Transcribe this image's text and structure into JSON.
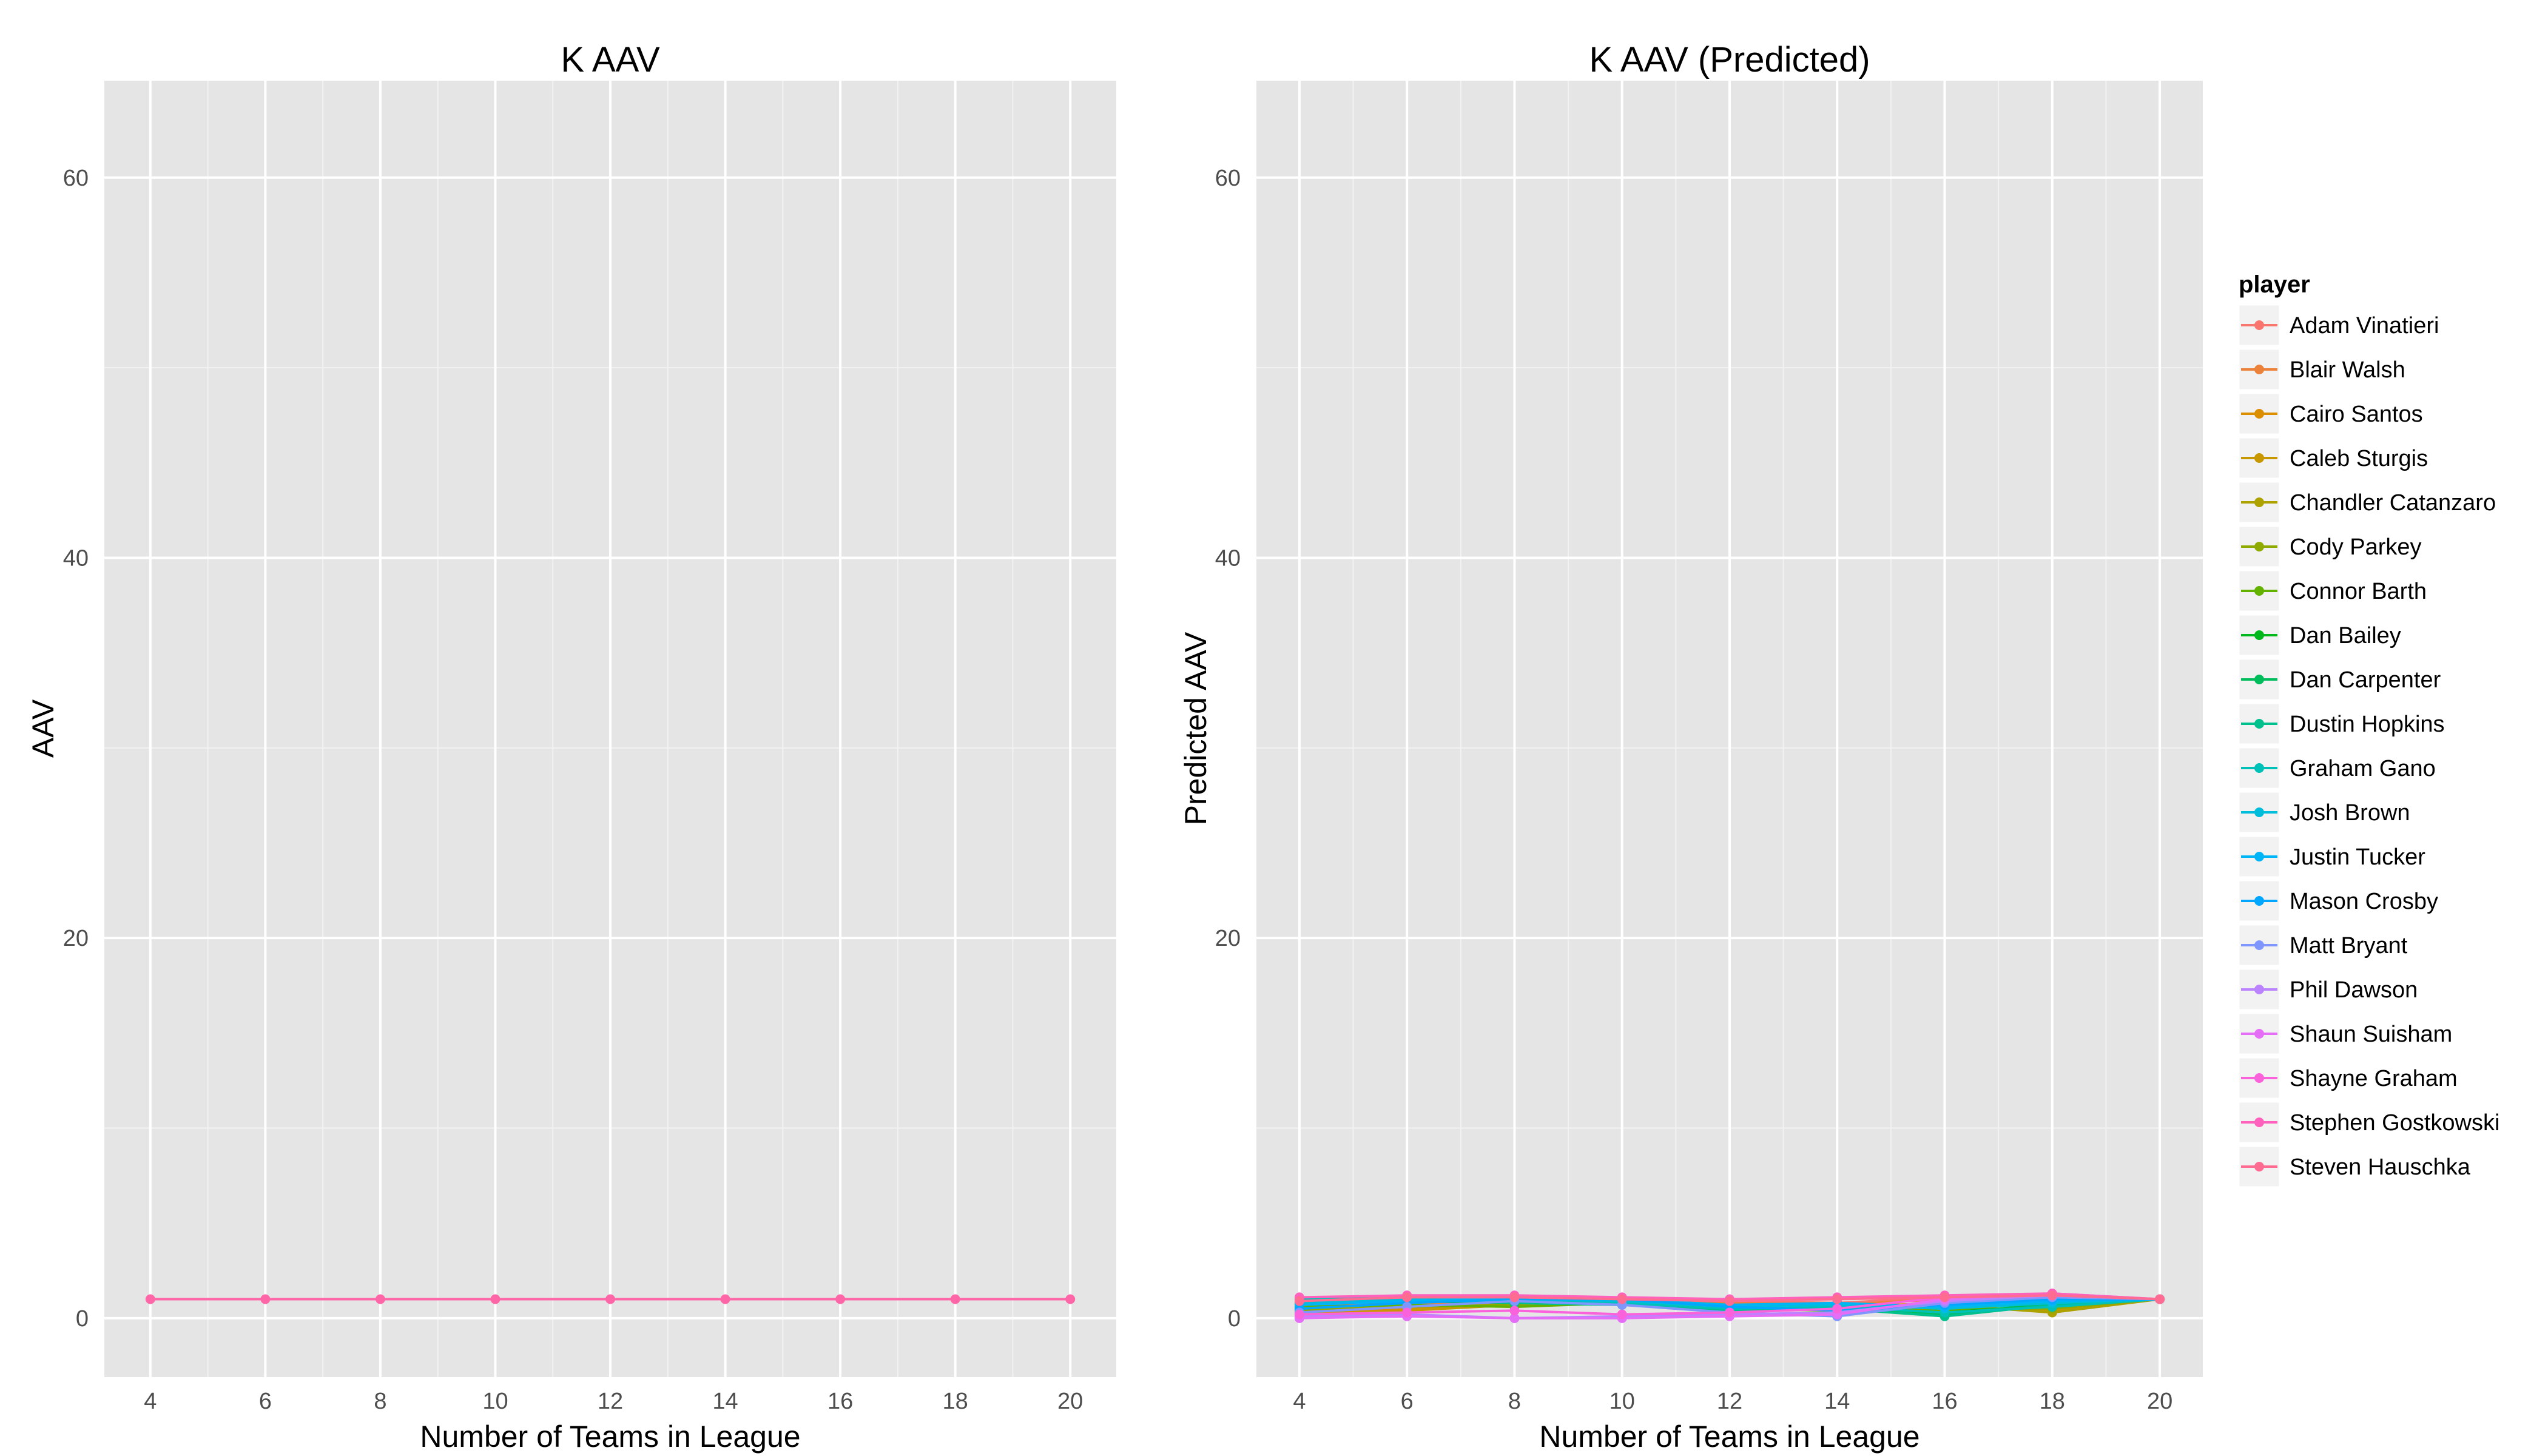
{
  "chart_data": [
    {
      "type": "line",
      "title": "K AAV",
      "xlabel": "Number of Teams in League",
      "ylabel": "AAV",
      "x": [
        4,
        6,
        8,
        10,
        12,
        14,
        16,
        18,
        20
      ],
      "xticks": [
        "4",
        "6",
        "8",
        "10",
        "12",
        "14",
        "16",
        "18",
        "20"
      ],
      "yticks": [
        "0",
        "20",
        "40",
        "60"
      ],
      "xlim": [
        3.2,
        20.8
      ],
      "ylim": [
        -3.1,
        65.1
      ],
      "grid": true,
      "series": [
        {
          "values": [
            1,
            1,
            1,
            1,
            1,
            1,
            1,
            1,
            1
          ],
          "color": "#FF66A8"
        }
      ]
    },
    {
      "type": "line",
      "title": "K AAV (Predicted)",
      "xlabel": "Number of Teams in League",
      "ylabel": "Predicted AAV",
      "x": [
        4,
        6,
        8,
        10,
        12,
        14,
        16,
        18,
        20
      ],
      "xticks": [
        "4",
        "6",
        "8",
        "10",
        "12",
        "14",
        "16",
        "18",
        "20"
      ],
      "yticks": [
        "0",
        "20",
        "40",
        "60"
      ],
      "xlim": [
        3.2,
        20.8
      ],
      "ylim": [
        -3.1,
        65.1
      ],
      "grid": true,
      "legend": {
        "title": "player",
        "position": "right"
      },
      "series": [
        {
          "name": "Adam Vinatieri",
          "color": "#F8766D",
          "values": [
            0.6,
            0.8,
            1.0,
            0.9,
            0.9,
            0.8,
            1.1,
            1.1,
            1.0
          ]
        },
        {
          "name": "Blair Walsh",
          "color": "#EC8239",
          "values": [
            0.4,
            0.7,
            0.9,
            0.8,
            0.8,
            0.7,
            1.0,
            1.2,
            1.0
          ]
        },
        {
          "name": "Cairo Santos",
          "color": "#DB8E00",
          "values": [
            0.3,
            0.5,
            0.8,
            0.9,
            0.7,
            0.6,
            0.8,
            1.0,
            1.0
          ]
        },
        {
          "name": "Caleb Sturgis",
          "color": "#C79800",
          "values": [
            0.2,
            0.4,
            0.7,
            0.8,
            0.6,
            0.5,
            0.6,
            0.4,
            1.0
          ]
        },
        {
          "name": "Chandler Catanzaro",
          "color": "#AEA200",
          "values": [
            0.5,
            0.6,
            0.8,
            0.9,
            0.7,
            0.6,
            0.7,
            0.3,
            1.0
          ]
        },
        {
          "name": "Cody Parkey",
          "color": "#8FAA00",
          "values": [
            0.4,
            0.6,
            0.7,
            0.8,
            0.6,
            0.5,
            0.5,
            0.5,
            1.0
          ]
        },
        {
          "name": "Connor Barth",
          "color": "#64B200",
          "values": [
            0.6,
            0.7,
            0.6,
            0.8,
            0.5,
            0.4,
            0.4,
            0.6,
            1.0
          ]
        },
        {
          "name": "Dan Bailey",
          "color": "#00B81B",
          "values": [
            0.7,
            0.9,
            0.8,
            0.9,
            0.6,
            0.5,
            0.3,
            0.7,
            1.0
          ]
        },
        {
          "name": "Dan Carpenter",
          "color": "#00BD5C",
          "values": [
            0.8,
            1.0,
            0.9,
            0.8,
            0.5,
            0.6,
            0.2,
            0.8,
            1.0
          ]
        },
        {
          "name": "Dustin Hopkins",
          "color": "#00C08E",
          "values": [
            0.9,
            1.0,
            0.8,
            0.7,
            0.4,
            0.5,
            0.1,
            0.7,
            1.0
          ]
        },
        {
          "name": "Graham Gano",
          "color": "#00C1B7",
          "values": [
            1.0,
            1.1,
            0.9,
            0.8,
            0.5,
            0.6,
            0.3,
            0.6,
            1.0
          ]
        },
        {
          "name": "Josh Brown",
          "color": "#00BDDC",
          "values": [
            0.8,
            1.0,
            1.0,
            0.9,
            0.6,
            0.7,
            0.5,
            0.8,
            1.0
          ]
        },
        {
          "name": "Justin Tucker",
          "color": "#00B5F7",
          "values": [
            0.7,
            0.9,
            1.1,
            1.0,
            0.7,
            0.8,
            0.6,
            0.9,
            1.0
          ]
        },
        {
          "name": "Mason Crosby",
          "color": "#00A6FF",
          "values": [
            0.5,
            0.8,
            1.0,
            1.0,
            0.6,
            0.4,
            0.7,
            1.0,
            1.0
          ]
        },
        {
          "name": "Matt Bryant",
          "color": "#7F96FF",
          "values": [
            0.3,
            0.6,
            0.9,
            0.7,
            0.3,
            0.1,
            0.8,
            1.1,
            1.0
          ]
        },
        {
          "name": "Phil Dawson",
          "color": "#BB83FF",
          "values": [
            0.1,
            0.2,
            0.0,
            0.1,
            0.2,
            0.3,
            0.9,
            1.2,
            1.0
          ]
        },
        {
          "name": "Shaun Suisham",
          "color": "#E56EF6",
          "values": [
            0.0,
            0.1,
            0.0,
            0.0,
            0.1,
            0.2,
            1.0,
            1.3,
            1.0
          ]
        },
        {
          "name": "Shayne Graham",
          "color": "#FA62DB",
          "values": [
            0.2,
            0.3,
            0.4,
            0.2,
            0.3,
            0.5,
            1.1,
            1.2,
            1.0
          ]
        },
        {
          "name": "Stephen Gostkowski",
          "color": "#FF62BC",
          "values": [
            1.1,
            1.2,
            1.2,
            1.1,
            1.0,
            1.1,
            1.2,
            1.3,
            1.0
          ]
        },
        {
          "name": "Steven Hauschka",
          "color": "#FF6C92",
          "values": [
            0.9,
            1.1,
            1.1,
            1.0,
            0.9,
            1.0,
            1.1,
            1.2,
            1.0
          ]
        }
      ]
    }
  ]
}
